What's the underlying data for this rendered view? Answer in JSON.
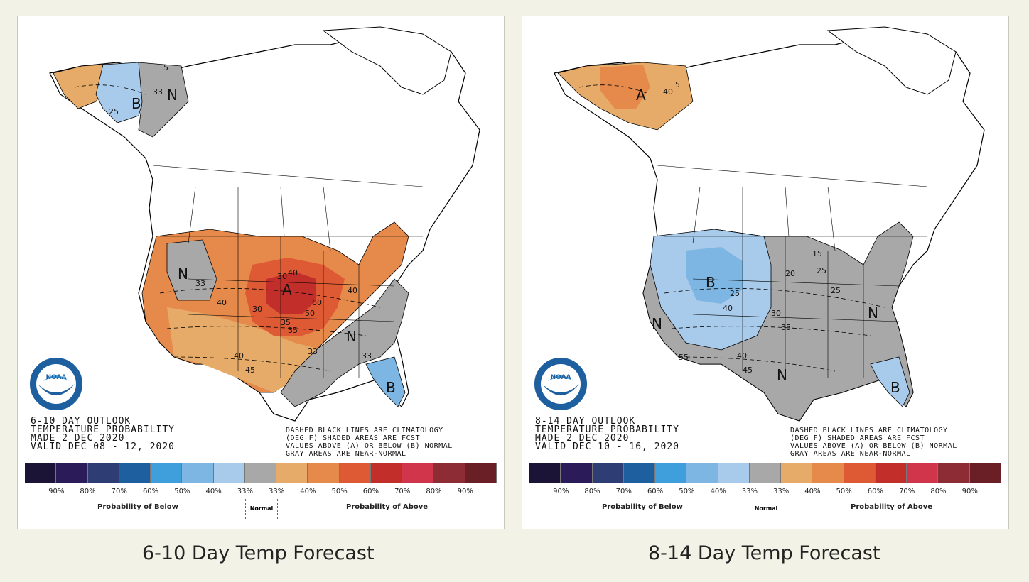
{
  "panels": [
    {
      "outlook_title": "6-10 DAY OUTLOOK",
      "subtitle": "TEMPERATURE PROBABILITY",
      "made": "MADE  2 DEC 2020",
      "valid": "VALID  DEC 08 - 12, 2020",
      "note_line1": "DASHED BLACK LINES ARE CLIMATOLOGY",
      "note_line2": "(DEG F) SHADED AREAS ARE FCST",
      "note_line3": "VALUES ABOVE (A) OR BELOW (B) NORMAL",
      "note_line4": "GRAY AREAS ARE NEAR-NORMAL",
      "caption": "6-10 Day Temp Forecast",
      "region_labels": [
        "A",
        "B",
        "N",
        "N",
        "N",
        "B"
      ],
      "contour_labels": [
        "33",
        "33",
        "40",
        "40",
        "40",
        "45",
        "50",
        "60",
        "30",
        "35",
        "35",
        "33",
        "40",
        "33",
        "5",
        "30",
        "25"
      ]
    },
    {
      "outlook_title": "8-14 DAY OUTLOOK",
      "subtitle": "TEMPERATURE PROBABILITY",
      "made": "MADE  2 DEC 2020",
      "valid": "VALID  DEC 10 - 16, 2020",
      "note_line1": "DASHED BLACK LINES ARE CLIMATOLOGY",
      "note_line2": "(DEG F) SHADED AREAS ARE FCST",
      "note_line3": "VALUES ABOVE (A) OR BELOW (B) NORMAL",
      "note_line4": "GRAY AREAS ARE NEAR-NORMAL",
      "caption": "8-14 Day Temp Forecast",
      "region_labels": [
        "A",
        "B",
        "N",
        "N",
        "N",
        "B"
      ],
      "contour_labels": [
        "40",
        "5",
        "25",
        "40",
        "30",
        "35",
        "40",
        "45",
        "55",
        "15",
        "20",
        "25",
        "25"
      ]
    }
  ],
  "legend": {
    "colors": [
      "#1c1436",
      "#2b1c59",
      "#2e3d73",
      "#1e5fa0",
      "#3f9fdc",
      "#7db6e2",
      "#a9cbeb",
      "#a8a8a8",
      "#e6ab69",
      "#e68a4b",
      "#dd5a34",
      "#c22f2b",
      "#d1354c",
      "#8e2c36",
      "#6a1f26"
    ],
    "ticks": [
      "90%",
      "80%",
      "70%",
      "60%",
      "50%",
      "40%",
      "33%",
      "33%",
      "40%",
      "50%",
      "60%",
      "70%",
      "80%",
      "90%"
    ],
    "below_label": "Probability of Below",
    "normal_label": "Normal",
    "above_label": "Probability of Above"
  },
  "logo": {
    "text": "NOAA"
  }
}
